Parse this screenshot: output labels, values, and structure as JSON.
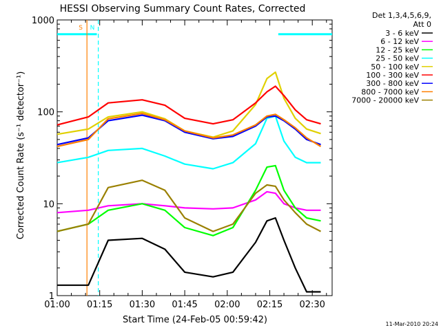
{
  "chart_data": {
    "type": "line",
    "title": "HESSI Observing Summary Count Rates, Corrected",
    "ylabel": "Corrected Count Rate (s⁻¹ detector⁻¹)",
    "xlabel": "Start Time (24-Feb-05 00:59:42)",
    "yscale": "log",
    "ylim": [
      1,
      1000
    ],
    "xlim_minutes_after_0100": [
      0,
      97
    ],
    "y_ticks": [
      {
        "value": 1,
        "label": "1"
      },
      {
        "value": 10,
        "label": "10"
      },
      {
        "value": 100,
        "label": "100"
      },
      {
        "value": 1000,
        "label": "1000"
      }
    ],
    "x_ticks": [
      {
        "value": 0,
        "label": "01:00"
      },
      {
        "value": 15,
        "label": "01:15"
      },
      {
        "value": 30,
        "label": "01:30"
      },
      {
        "value": 45,
        "label": "01:45"
      },
      {
        "value": 60,
        "label": "02:00"
      },
      {
        "value": 75,
        "label": "02:15"
      },
      {
        "value": 90,
        "label": "02:30"
      }
    ],
    "grid": false,
    "legend": {
      "placement": "right",
      "header": [
        "Det 1,3,4,5,6,9,",
        "Att 0"
      ]
    },
    "timestamp": "11-Mar-2010 20:24",
    "series": [
      {
        "name": "3 - 6 keV",
        "color": "#000000",
        "values": [
          [
            0,
            1.3
          ],
          [
            11,
            1.3
          ],
          [
            18,
            4
          ],
          [
            30,
            4.2
          ],
          [
            38,
            3.2
          ],
          [
            45,
            1.8
          ],
          [
            55,
            1.6
          ],
          [
            62,
            1.8
          ],
          [
            70,
            3.8
          ],
          [
            74,
            6.5
          ],
          [
            77,
            7
          ],
          [
            80,
            4
          ],
          [
            84,
            2
          ],
          [
            88,
            1.1
          ],
          [
            93,
            1.1
          ]
        ]
      },
      {
        "name": "6 - 12 keV",
        "color": "#ff00ff",
        "values": [
          [
            0,
            8
          ],
          [
            11,
            8.5
          ],
          [
            18,
            9.5
          ],
          [
            30,
            10
          ],
          [
            38,
            9.5
          ],
          [
            45,
            9
          ],
          [
            55,
            8.8
          ],
          [
            62,
            9
          ],
          [
            70,
            11
          ],
          [
            74,
            13.5
          ],
          [
            77,
            13
          ],
          [
            80,
            10
          ],
          [
            84,
            9
          ],
          [
            88,
            8.5
          ],
          [
            93,
            8.5
          ]
        ]
      },
      {
        "name": "12 - 25 keV",
        "color": "#00ff00",
        "values": [
          [
            0,
            5
          ],
          [
            11,
            6
          ],
          [
            18,
            8.5
          ],
          [
            30,
            10
          ],
          [
            38,
            8.5
          ],
          [
            45,
            5.5
          ],
          [
            55,
            4.5
          ],
          [
            62,
            5.5
          ],
          [
            70,
            14
          ],
          [
            74,
            25
          ],
          [
            77,
            26
          ],
          [
            80,
            14
          ],
          [
            84,
            9
          ],
          [
            88,
            7
          ],
          [
            93,
            6.5
          ]
        ]
      },
      {
        "name": "25 - 50 keV",
        "color": "#00ffff",
        "values": [
          [
            0,
            28
          ],
          [
            11,
            32
          ],
          [
            18,
            38
          ],
          [
            30,
            40
          ],
          [
            38,
            33
          ],
          [
            45,
            27
          ],
          [
            55,
            24
          ],
          [
            62,
            28
          ],
          [
            70,
            45
          ],
          [
            74,
            85
          ],
          [
            77,
            90
          ],
          [
            80,
            48
          ],
          [
            84,
            32
          ],
          [
            88,
            28
          ],
          [
            93,
            28
          ]
        ]
      },
      {
        "name": "50 - 100 keV",
        "color": "#e0d000",
        "values": [
          [
            0,
            57
          ],
          [
            11,
            65
          ],
          [
            18,
            88
          ],
          [
            30,
            100
          ],
          [
            38,
            84
          ],
          [
            45,
            62
          ],
          [
            55,
            53
          ],
          [
            62,
            62
          ],
          [
            70,
            120
          ],
          [
            74,
            230
          ],
          [
            77,
            270
          ],
          [
            80,
            140
          ],
          [
            84,
            85
          ],
          [
            88,
            65
          ],
          [
            93,
            58
          ]
        ]
      },
      {
        "name": "100 - 300 keV",
        "color": "#ff0000",
        "values": [
          [
            0,
            72
          ],
          [
            11,
            88
          ],
          [
            18,
            125
          ],
          [
            30,
            135
          ],
          [
            38,
            118
          ],
          [
            45,
            85
          ],
          [
            55,
            74
          ],
          [
            62,
            82
          ],
          [
            70,
            125
          ],
          [
            74,
            165
          ],
          [
            77,
            190
          ],
          [
            80,
            150
          ],
          [
            84,
            105
          ],
          [
            88,
            82
          ],
          [
            93,
            74
          ]
        ]
      },
      {
        "name": "300 - 800 keV",
        "color": "#0000ff",
        "values": [
          [
            0,
            44
          ],
          [
            11,
            52
          ],
          [
            18,
            80
          ],
          [
            30,
            92
          ],
          [
            38,
            80
          ],
          [
            45,
            60
          ],
          [
            55,
            51
          ],
          [
            62,
            54
          ],
          [
            70,
            70
          ],
          [
            74,
            88
          ],
          [
            77,
            90
          ],
          [
            80,
            80
          ],
          [
            84,
            65
          ],
          [
            88,
            50
          ],
          [
            93,
            44
          ]
        ]
      },
      {
        "name": "800 - 7000 keV",
        "color": "#ff7f00",
        "values": [
          [
            0,
            42
          ],
          [
            11,
            50
          ],
          [
            18,
            84
          ],
          [
            30,
            96
          ],
          [
            38,
            82
          ],
          [
            45,
            62
          ],
          [
            55,
            52
          ],
          [
            62,
            56
          ],
          [
            70,
            72
          ],
          [
            74,
            90
          ],
          [
            77,
            94
          ],
          [
            80,
            82
          ],
          [
            84,
            67
          ],
          [
            88,
            52
          ],
          [
            93,
            42
          ]
        ]
      },
      {
        "name": "7000 - 20000 keV",
        "color": "#9a8000",
        "values": [
          [
            0,
            5
          ],
          [
            11,
            6
          ],
          [
            18,
            15
          ],
          [
            30,
            18
          ],
          [
            38,
            14
          ],
          [
            45,
            7
          ],
          [
            55,
            5
          ],
          [
            62,
            6
          ],
          [
            70,
            13
          ],
          [
            74,
            16
          ],
          [
            77,
            15.5
          ],
          [
            80,
            11
          ],
          [
            84,
            8
          ],
          [
            88,
            6
          ],
          [
            93,
            5
          ]
        ]
      }
    ],
    "annotations": [
      {
        "label": "S",
        "color": "#ff7f00",
        "x": 10.5
      },
      {
        "label": "N",
        "color": "#00ffff",
        "x": 14.5
      }
    ],
    "reference_levels": [
      {
        "label": "",
        "color": "#00ffff",
        "value": 700,
        "ranges": [
          [
            0,
            14
          ],
          [
            78,
            97
          ]
        ]
      }
    ]
  }
}
